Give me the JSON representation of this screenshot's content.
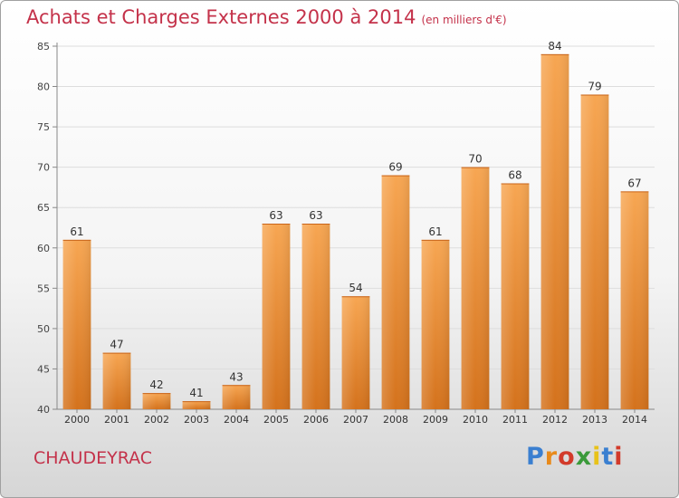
{
  "header": {
    "title": "Achats et Charges Externes 2000 à 2014",
    "unit": "(en milliers d'€)"
  },
  "commune": "CHAUDEYRAC",
  "logo": {
    "text": "Proxiti",
    "colors": [
      "#3a7fd0",
      "#e88a1a",
      "#d23a2a",
      "#3a9a3a",
      "#e8c21a",
      "#3a7fd0",
      "#d23a2a"
    ]
  },
  "colors": {
    "accent": "#c4324a",
    "bar_top": "#f7a652",
    "bar_bottom": "#d4721c",
    "grid": "#dddddd",
    "axis": "#888888"
  },
  "chart_data": {
    "type": "bar",
    "title": "Achats et Charges Externes 2000 à 2014",
    "xlabel": "",
    "ylabel": "",
    "categories": [
      "2000",
      "2001",
      "2002",
      "2003",
      "2004",
      "2005",
      "2006",
      "2007",
      "2008",
      "2009",
      "2010",
      "2011",
      "2012",
      "2013",
      "2014"
    ],
    "values": [
      61,
      47,
      42,
      41,
      43,
      63,
      63,
      54,
      69,
      61,
      70,
      68,
      84,
      79,
      67
    ],
    "ylim": [
      40,
      85
    ],
    "yticks": [
      40,
      45,
      50,
      55,
      60,
      65,
      70,
      75,
      80,
      85
    ],
    "grid": true,
    "data_labels": true
  }
}
